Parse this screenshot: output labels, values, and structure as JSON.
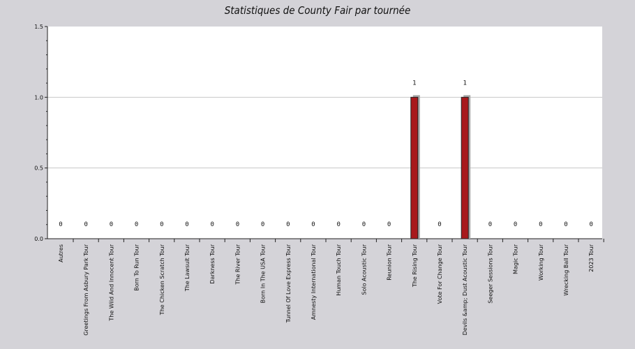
{
  "chart_data": {
    "type": "bar",
    "title": "Statistiques de County Fair par tournée",
    "xlabel": "",
    "ylabel": "",
    "ylim": [
      0,
      1.5
    ],
    "yticks": [
      "0.0",
      "0.5",
      "1.0",
      "1.5"
    ],
    "grid": true,
    "categories": [
      "Autres",
      "Greetings From Asbury Park Tour",
      "The Wild And Innocent Tour",
      "Born To Run Tour",
      "The Chicken Scratch Tour",
      "The Lawsuit Tour",
      "Darkness Tour",
      "The River Tour",
      "Born In The USA Tour",
      "Tunnel Of Love Express Tour",
      "Amnesty International Tour",
      "Human Touch Tour",
      "Solo Acoustic Tour",
      "Reunion Tour",
      "The Rising Tour",
      "Vote For Change Tour",
      "Devils &amp; Dust Acoustic Tour",
      "Seeger Sessions Tour",
      "Magic Tour",
      "Working Tour",
      "Wrecking Ball Tour",
      "2023 Tour"
    ],
    "values": [
      0,
      0,
      0,
      0,
      0,
      0,
      0,
      0,
      0,
      0,
      0,
      0,
      0,
      0,
      1,
      0,
      1,
      0,
      0,
      0,
      0,
      0
    ],
    "data_labels": [
      "0",
      "0",
      "0",
      "0",
      "0",
      "0",
      "0",
      "0",
      "0",
      "0",
      "0",
      "0",
      "0",
      "0",
      "1",
      "0",
      "1",
      "0",
      "0",
      "0",
      "0",
      "0"
    ],
    "colors": {
      "bar": "#a8191c",
      "bar_shadow": "#a9a9a9",
      "plot_bg": "#ffffff",
      "page_bg": "#d4d3d8",
      "grid": "#c8c8c8"
    }
  }
}
